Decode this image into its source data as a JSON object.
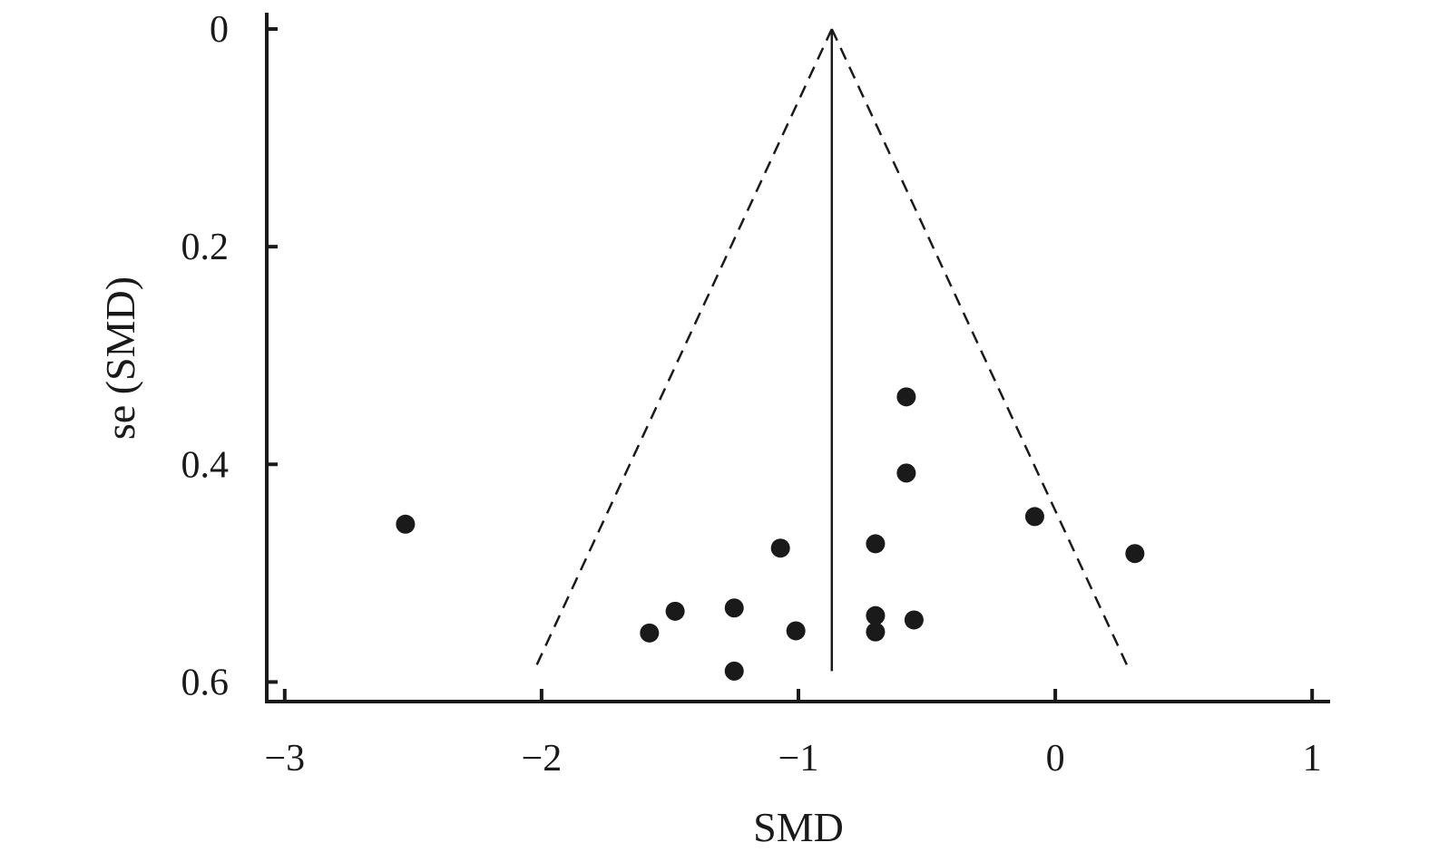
{
  "chart_data": {
    "type": "scatter",
    "title": "",
    "xlabel": "SMD",
    "ylabel": "se (SMD)",
    "xlim": [
      -3.07,
      1.07
    ],
    "ylim": [
      0,
      0.618
    ],
    "y_inverted": true,
    "grid": false,
    "x_ticks": [
      -3,
      -2,
      -1,
      0,
      1
    ],
    "x_tick_labels": [
      "−3",
      "−2",
      "−1",
      "0",
      "1"
    ],
    "y_ticks": [
      0,
      0.2,
      0.4,
      0.6
    ],
    "y_tick_labels": [
      "0",
      "0.2",
      "0.4",
      "0.6"
    ],
    "pooled_estimate": -0.87,
    "funnel": {
      "apex_se": 0,
      "base_se": 0.59,
      "left_x_at_base": -2.03,
      "right_x_at_base": 0.29
    },
    "points": [
      {
        "x": -2.53,
        "y": 0.455
      },
      {
        "x": -0.58,
        "y": 0.338
      },
      {
        "x": -0.58,
        "y": 0.408
      },
      {
        "x": -0.08,
        "y": 0.448
      },
      {
        "x": 0.31,
        "y": 0.482
      },
      {
        "x": -1.07,
        "y": 0.477
      },
      {
        "x": -0.7,
        "y": 0.473
      },
      {
        "x": -1.25,
        "y": 0.532
      },
      {
        "x": -1.48,
        "y": 0.535
      },
      {
        "x": -1.58,
        "y": 0.555
      },
      {
        "x": -1.01,
        "y": 0.553
      },
      {
        "x": -0.7,
        "y": 0.539
      },
      {
        "x": -0.7,
        "y": 0.554
      },
      {
        "x": -0.55,
        "y": 0.543
      },
      {
        "x": -1.25,
        "y": 0.59
      }
    ]
  }
}
